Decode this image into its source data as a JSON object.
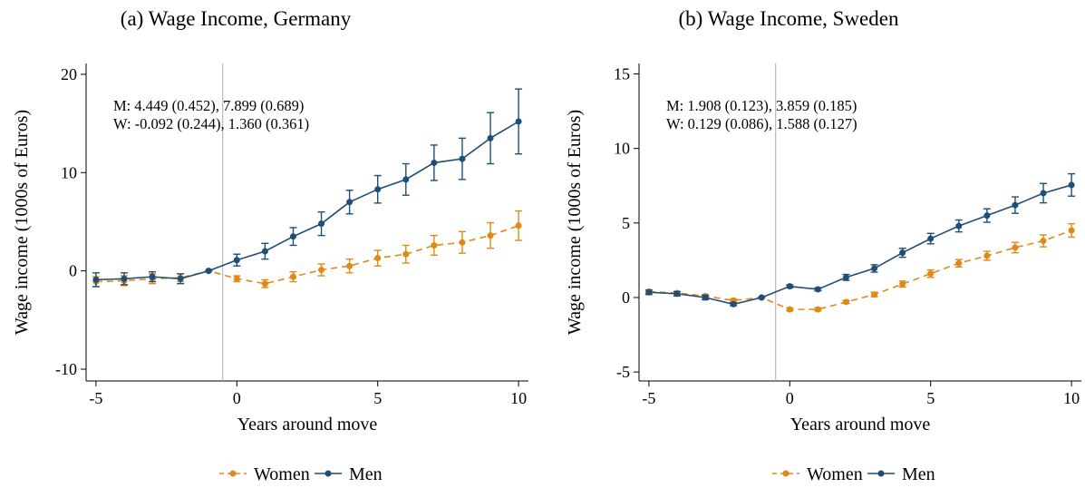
{
  "chart_data": [
    {
      "type": "line",
      "title": "(a) Wage Income, Germany",
      "xlabel": "Years around move",
      "ylabel": "Wage income (1000s of Euros)",
      "annotations": [
        "M: 4.449 (0.452), 7.899 (0.689)",
        "W: -0.092 (0.244), 1.360 (0.361)"
      ],
      "x": [
        -5,
        -4,
        -3,
        -2,
        -1,
        0,
        1,
        2,
        3,
        4,
        5,
        6,
        7,
        8,
        9,
        10
      ],
      "xlim": [
        -5.35,
        10.35
      ],
      "xticks": [
        -5,
        0,
        5,
        10
      ],
      "ylim": [
        -11.2,
        21.1
      ],
      "yticks": [
        -10,
        0,
        10,
        20
      ],
      "event_line_x": -0.5,
      "series": [
        {
          "name": "Women",
          "color": "#e08a16",
          "dashed": true,
          "values": [
            -1.1,
            -1.0,
            -0.8,
            -0.7,
            0,
            -0.8,
            -1.3,
            -0.6,
            0.1,
            0.5,
            1.3,
            1.7,
            2.6,
            2.9,
            3.6,
            4.6
          ],
          "errors": [
            0.5,
            0.5,
            0.5,
            0.4,
            0,
            0.3,
            0.4,
            0.5,
            0.6,
            0.7,
            0.8,
            0.9,
            1.0,
            1.1,
            1.3,
            1.5
          ]
        },
        {
          "name": "Men",
          "color": "#1f4e79",
          "dashed": false,
          "values": [
            -0.9,
            -0.8,
            -0.6,
            -0.8,
            0,
            1.1,
            2.0,
            3.5,
            4.8,
            7.0,
            8.3,
            9.3,
            11.0,
            11.4,
            13.5,
            15.2
          ],
          "errors": [
            0.7,
            0.6,
            0.5,
            0.5,
            0,
            0.6,
            0.8,
            0.9,
            1.2,
            1.2,
            1.4,
            1.6,
            1.8,
            2.1,
            2.6,
            3.3
          ]
        }
      ]
    },
    {
      "type": "line",
      "title": "(b) Wage Income, Sweden",
      "xlabel": "Years around move",
      "ylabel": "Wage income (1000s of Euros)",
      "annotations": [
        "M: 1.908 (0.123), 3.859 (0.185)",
        "W: 0.129 (0.086), 1.588 (0.127)"
      ],
      "x": [
        -5,
        -4,
        -3,
        -2,
        -1,
        0,
        1,
        2,
        3,
        4,
        5,
        6,
        7,
        8,
        9,
        10
      ],
      "xlim": [
        -5.35,
        10.35
      ],
      "xticks": [
        -5,
        0,
        5,
        10
      ],
      "ylim": [
        -5.6,
        15.7
      ],
      "yticks": [
        -5,
        0,
        5,
        10,
        15
      ],
      "event_line_x": -0.5,
      "series": [
        {
          "name": "Women",
          "color": "#e08a16",
          "dashed": true,
          "values": [
            0.4,
            0.3,
            0.1,
            -0.2,
            0,
            -0.8,
            -0.8,
            -0.3,
            0.2,
            0.9,
            1.6,
            2.3,
            2.8,
            3.35,
            3.8,
            4.5
          ],
          "errors": [
            0.1,
            0.1,
            0.1,
            0.1,
            0,
            0.1,
            0.1,
            0.1,
            0.15,
            0.2,
            0.25,
            0.25,
            0.3,
            0.35,
            0.4,
            0.45
          ]
        },
        {
          "name": "Men",
          "color": "#1f4e79",
          "dashed": false,
          "values": [
            0.35,
            0.25,
            0.0,
            -0.45,
            0,
            0.75,
            0.55,
            1.35,
            1.95,
            3.0,
            3.95,
            4.8,
            5.5,
            6.2,
            7.0,
            7.55
          ],
          "errors": [
            0.15,
            0.15,
            0.15,
            0.1,
            0,
            0.1,
            0.1,
            0.2,
            0.25,
            0.3,
            0.35,
            0.4,
            0.45,
            0.55,
            0.65,
            0.75
          ]
        }
      ]
    }
  ]
}
